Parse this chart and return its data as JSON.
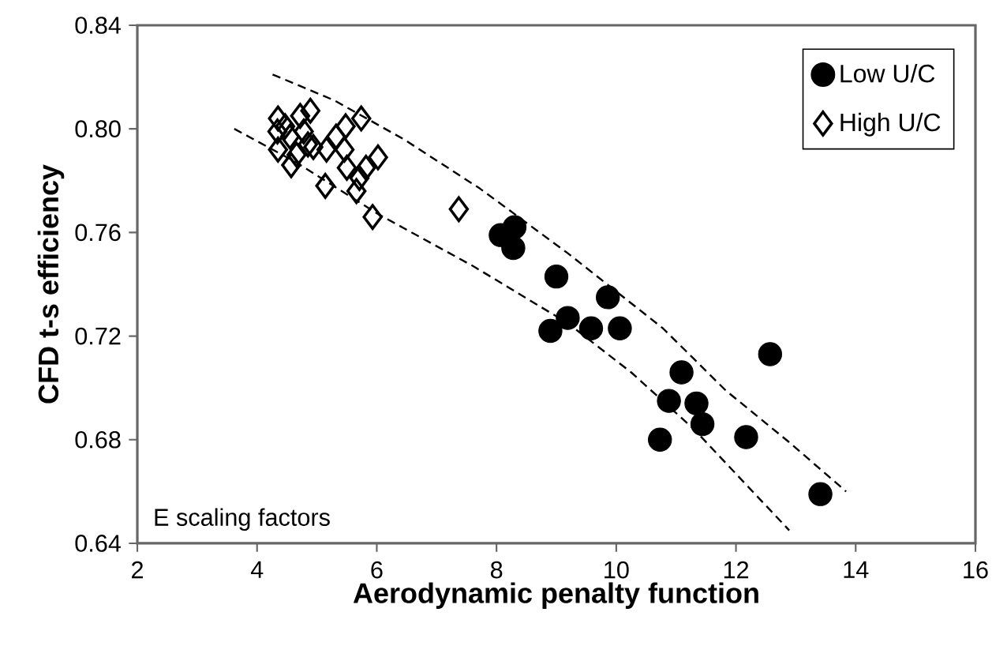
{
  "chart_data": {
    "type": "scatter",
    "xlabel": "Aerodynamic penalty function",
    "ylabel": "CFD t-s efficiency",
    "xlim": [
      2,
      16
    ],
    "xticks": [
      2,
      4,
      6,
      8,
      10,
      12,
      14,
      16
    ],
    "ylim": [
      0.64,
      0.84
    ],
    "yticks": [
      0.64,
      0.68,
      0.72,
      0.76,
      {
        "value": 0.8,
        "label": "0.80"
      },
      0.84
    ],
    "grid": false,
    "legend": "top right",
    "annotations": [
      "E scaling factors"
    ],
    "series": [
      {
        "name": "Low U/C",
        "color": "#000000",
        "marker": "circle",
        "x": [
          8.07,
          8.3,
          8.28,
          9.0,
          9.86,
          8.9,
          9.19,
          9.58,
          10.06,
          11.09,
          10.88,
          11.34,
          11.44,
          10.73,
          12.17,
          12.57,
          13.41
        ],
        "values": [
          0.759,
          0.762,
          0.754,
          0.743,
          0.735,
          0.722,
          0.727,
          0.723,
          0.723,
          0.706,
          0.695,
          0.694,
          0.686,
          0.68,
          0.681,
          0.713,
          0.659
        ]
      },
      {
        "name": "High U/C",
        "color": "#000000",
        "marker": "diamond",
        "x": [
          4.35,
          4.47,
          4.34,
          4.35,
          4.55,
          4.57,
          4.72,
          4.89,
          4.85,
          4.94,
          5.16,
          5.14,
          5.32,
          5.48,
          5.46,
          5.5,
          5.66,
          5.71,
          5.74,
          5.82,
          6.02,
          5.93,
          7.37,
          4.66,
          4.78
        ],
        "values": [
          0.804,
          0.801,
          0.799,
          0.792,
          0.797,
          0.786,
          0.805,
          0.807,
          0.794,
          0.793,
          0.792,
          0.778,
          0.797,
          0.801,
          0.792,
          0.785,
          0.776,
          0.781,
          0.804,
          0.785,
          0.789,
          0.766,
          0.769,
          0.79,
          0.799
        ]
      },
      {
        "type": "line",
        "color": "#000000",
        "line_style": "dashed",
        "marker": "none",
        "x": [
          4.26,
          5.29,
          6.45,
          7.72,
          9.19,
          10.78,
          11.83,
          12.89,
          13.84
        ],
        "values": [
          0.821,
          0.811,
          0.796,
          0.777,
          0.752,
          0.723,
          0.699,
          0.679,
          0.66
        ]
      },
      {
        "type": "line",
        "color": "#000000",
        "line_style": "dashed",
        "marker": "none",
        "x": [
          3.62,
          4.66,
          6.03,
          7.61,
          9.19,
          10.25,
          11.3,
          12.89
        ],
        "values": [
          0.8,
          0.787,
          0.767,
          0.747,
          0.725,
          0.706,
          0.684,
          0.645
        ]
      }
    ]
  }
}
